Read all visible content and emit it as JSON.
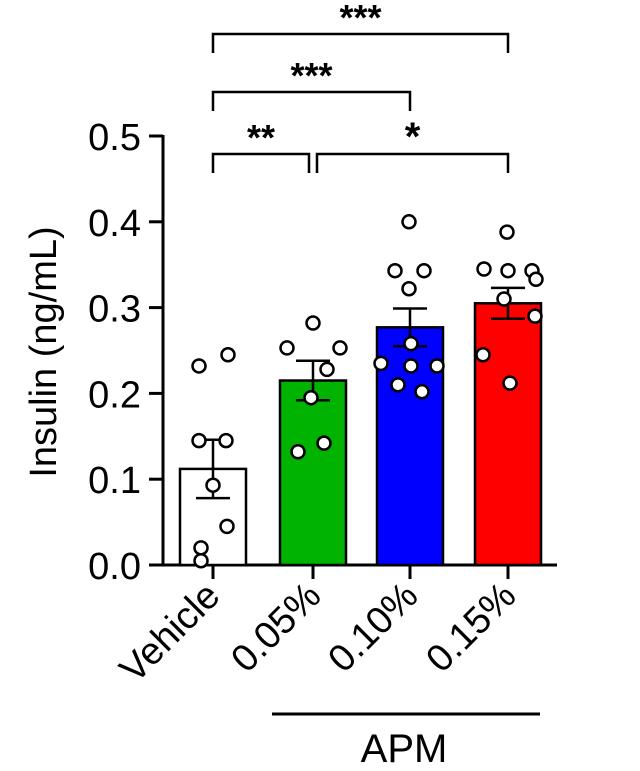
{
  "chart_data": {
    "type": "bar",
    "ylabel": "Insulin (ng/mL)",
    "ylim": [
      0,
      0.5
    ],
    "yticks": [
      0.0,
      0.1,
      0.2,
      0.3,
      0.4,
      0.5
    ],
    "ytick_labels": [
      "0.0",
      "0.1",
      "0.2",
      "0.3",
      "0.4",
      "0.5"
    ],
    "categories": [
      "Vehicle",
      "0.05%",
      "0.10%",
      "0.15%"
    ],
    "group_label": "APM",
    "group_members": [
      "0.05%",
      "0.10%",
      "0.15%"
    ],
    "bars": [
      {
        "category": "Vehicle",
        "mean": 0.112,
        "sem": 0.034,
        "color": "#ffffff",
        "points": [
          0.232,
          0.245,
          0.145,
          0.145,
          0.093,
          0.045,
          0.02,
          0.005
        ]
      },
      {
        "category": "0.05%",
        "mean": 0.215,
        "sem": 0.023,
        "color": "#00b300",
        "points": [
          0.282,
          0.253,
          0.253,
          0.228,
          0.195,
          0.142,
          0.132
        ]
      },
      {
        "category": "0.10%",
        "mean": 0.277,
        "sem": 0.022,
        "color": "#0000ff",
        "points": [
          0.4,
          0.343,
          0.343,
          0.322,
          0.258,
          0.235,
          0.232,
          0.232,
          0.21,
          0.202
        ]
      },
      {
        "category": "0.15%",
        "mean": 0.305,
        "sem": 0.018,
        "color": "#ff0000",
        "points": [
          0.388,
          0.345,
          0.343,
          0.343,
          0.333,
          0.31,
          0.29,
          0.245,
          0.212
        ]
      }
    ],
    "significance": [
      {
        "from": "Vehicle",
        "to": "0.05%",
        "label": "**"
      },
      {
        "from": "0.05%",
        "to": "0.15%",
        "label": "*"
      },
      {
        "from": "Vehicle",
        "to": "0.10%",
        "label": "***"
      },
      {
        "from": "Vehicle",
        "to": "0.15%",
        "label": "***"
      }
    ],
    "grid": false,
    "legend": "none"
  }
}
